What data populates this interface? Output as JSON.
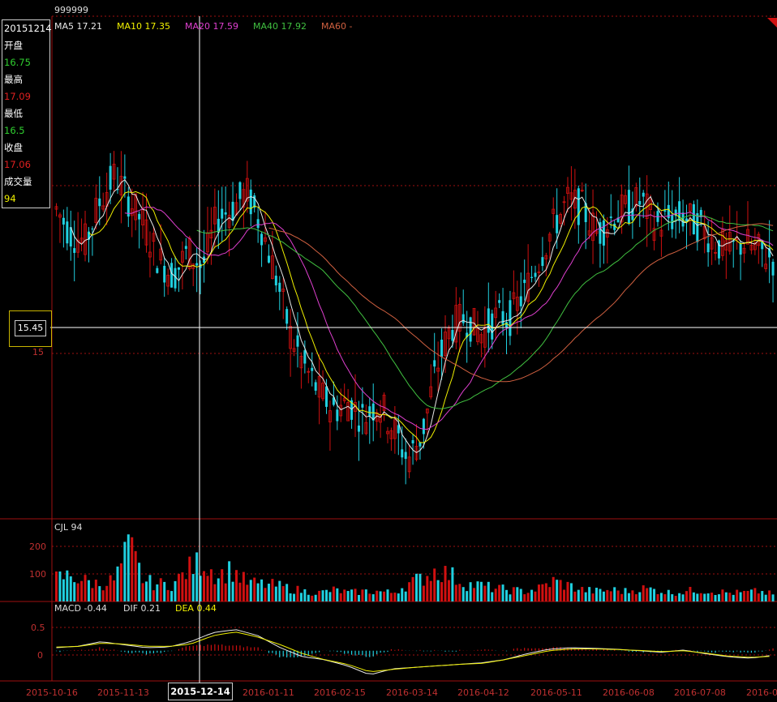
{
  "symbol": "999999",
  "info": {
    "date": "20151214",
    "open_label": "开盘",
    "open": "16.75",
    "high_label": "最高",
    "high": "17.09",
    "low_label": "最低",
    "low": "16.5",
    "close_label": "收盘",
    "close": "17.06",
    "vol_label": "成交量",
    "vol": "94"
  },
  "ma_legend": [
    {
      "text": "MA5 17.21",
      "color": "#e8e8e8"
    },
    {
      "text": "MA10 17.35",
      "color": "#f0f000"
    },
    {
      "text": "MA20 17.59",
      "color": "#e040d0"
    },
    {
      "text": "MA40 17.92",
      "color": "#40c040"
    },
    {
      "text": "MA60 -",
      "color": "#d06040"
    }
  ],
  "cursor_price": "15.45",
  "cursor_date": "2015-12-14",
  "price_tick": "15",
  "volume_panel": {
    "title": "CJL 94",
    "ticks": [
      "200",
      "100"
    ]
  },
  "macd_panel": {
    "macd": "MACD -0.44",
    "dif": "DIF 0.21",
    "dea": "DEA 0.44",
    "ticks": [
      "0.5",
      "0"
    ]
  },
  "x_ticks": [
    "2015-10-16",
    "2015-11-13",
    "2016-01-11",
    "2016-02-15",
    "2016-03-14",
    "2016-04-12",
    "2016-05-11",
    "2016-06-08",
    "2016-07-08",
    "2016-0"
  ],
  "colors": {
    "up": "#d01010",
    "down": "#20d0e0",
    "grid": "#a01010",
    "ma5": "#e8e8e8",
    "ma10": "#f0f000",
    "ma20": "#e040d0",
    "ma40": "#40c040",
    "ma60": "#d06040"
  },
  "chart_data": {
    "type": "line",
    "title": "999999",
    "price_ylim": [
      13.5,
      19.5
    ],
    "volume_ylim": [
      0,
      230
    ],
    "macd_ylim": [
      -1.0,
      1.2
    ],
    "price_close_series": [
      17.2,
      16.9,
      16.8,
      17.3,
      17.6,
      17.3,
      17.0,
      16.6,
      16.4,
      16.7,
      16.5,
      17.1,
      17.2,
      17.4,
      17.0,
      16.4,
      15.7,
      15.3,
      15.0,
      14.8,
      14.9,
      14.7,
      14.9,
      14.6,
      14.2,
      14.5,
      15.3,
      15.8,
      15.9,
      15.7,
      15.9,
      15.9,
      16.2,
      16.6,
      17.0,
      17.3,
      17.2,
      16.9,
      17.1,
      17.2,
      17.3,
      17.0,
      17.1,
      17.1,
      17.0,
      16.8,
      16.7,
      16.8,
      16.7,
      16.6
    ],
    "volume_series": [
      80,
      90,
      70,
      60,
      75,
      190,
      70,
      60,
      60,
      110,
      140,
      90,
      110,
      65,
      60,
      55,
      45,
      35,
      30,
      40,
      30,
      35,
      35,
      30,
      60,
      80,
      110,
      90,
      60,
      55,
      45,
      40,
      35,
      45,
      70,
      55,
      40,
      35,
      40,
      35,
      45,
      40,
      30,
      35,
      40,
      35,
      30,
      30,
      35,
      25
    ],
    "dif_series": [
      0.1,
      0.15,
      0.3,
      0.2,
      0.1,
      0.12,
      0.3,
      0.6,
      0.7,
      0.5,
      0.1,
      -0.2,
      -0.3,
      -0.5,
      -0.8,
      -0.6,
      -0.55,
      -0.5,
      -0.45,
      -0.4,
      -0.3,
      -0.1,
      0.05,
      0.1,
      0.08,
      0.05,
      0.0,
      -0.05,
      0.02,
      -0.1,
      -0.2,
      -0.25,
      -0.15
    ],
    "dea_series": [
      0.12,
      0.14,
      0.25,
      0.22,
      0.15,
      0.14,
      0.22,
      0.5,
      0.62,
      0.45,
      0.2,
      -0.1,
      -0.3,
      -0.45,
      -0.7,
      -0.62,
      -0.55,
      -0.5,
      -0.45,
      -0.42,
      -0.3,
      -0.15,
      0.0,
      0.06,
      0.06,
      0.04,
      0.01,
      -0.03,
      0.0,
      -0.08,
      -0.18,
      -0.22,
      -0.18
    ]
  }
}
